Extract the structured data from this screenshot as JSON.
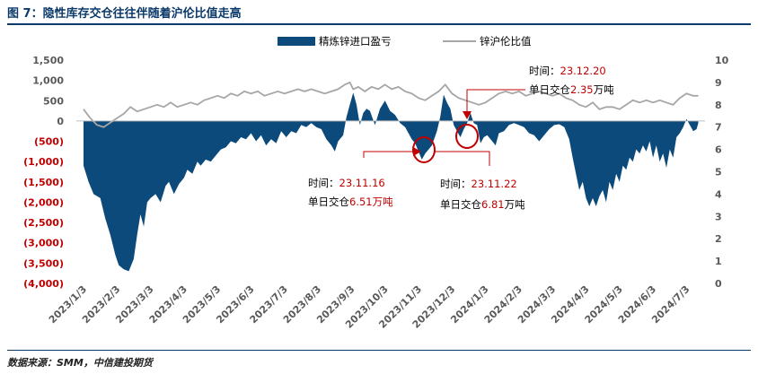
{
  "title": "图 7：隐性库存交仓往往伴随着沪伦比值走高",
  "source": "数据来源：SMM，中信建投期货",
  "colors": {
    "area": "#0b4a7a",
    "line": "#a6a6a6",
    "accent": "#c00000",
    "title": "#0b3a6a"
  },
  "chart_data": {
    "type": "area+line",
    "series": [
      {
        "name": "精炼锌进口盈亏",
        "axis": "left",
        "type": "area"
      },
      {
        "name": "锌沪伦比值",
        "axis": "right",
        "type": "line"
      }
    ],
    "left_axis": {
      "range": [
        -4000,
        1500
      ],
      "ticks": [
        1500,
        1000,
        500,
        0,
        -500,
        -1000,
        -1500,
        -2000,
        -2500,
        -3000,
        -3500,
        -4000
      ],
      "labels": [
        "1,500",
        "1,000",
        "500",
        "0",
        "(500)",
        "(1,000)",
        "(1,500)",
        "(2,000)",
        "(2,500)",
        "(3,000)",
        "(3,500)",
        "(4,000)"
      ]
    },
    "right_axis": {
      "range": [
        0,
        10
      ],
      "ticks": [
        10,
        9,
        8,
        7,
        6,
        5,
        4,
        3,
        2,
        1,
        0
      ],
      "labels": [
        "10",
        "9",
        "8",
        "7",
        "6",
        "5",
        "4",
        "3",
        "2",
        "1",
        "0"
      ]
    },
    "x_labels": [
      "2023/1/3",
      "2023/2/3",
      "2023/3/3",
      "2023/4/3",
      "2023/5/3",
      "2023/6/3",
      "2023/7/3",
      "2023/8/3",
      "2023/9/3",
      "2023/10/3",
      "2023/11/3",
      "2023/12/3",
      "2024/1/3",
      "2024/2/3",
      "2024/3/3",
      "2024/4/3",
      "2024/5/3",
      "2024/6/3",
      "2024/7/3"
    ],
    "area_points": [
      [
        0,
        -1100
      ],
      [
        0.15,
        -1500
      ],
      [
        0.3,
        -1800
      ],
      [
        0.5,
        -1900
      ],
      [
        0.65,
        -2400
      ],
      [
        0.8,
        -2800
      ],
      [
        0.95,
        -3300
      ],
      [
        1.05,
        -3550
      ],
      [
        1.2,
        -3650
      ],
      [
        1.35,
        -3700
      ],
      [
        1.5,
        -3400
      ],
      [
        1.6,
        -2800
      ],
      [
        1.7,
        -2300
      ],
      [
        1.8,
        -2600
      ],
      [
        1.9,
        -2000
      ],
      [
        2.0,
        -1900
      ],
      [
        2.15,
        -1800
      ],
      [
        2.3,
        -2000
      ],
      [
        2.45,
        -1600
      ],
      [
        2.55,
        -1500
      ],
      [
        2.7,
        -1800
      ],
      [
        2.85,
        -1550
      ],
      [
        3.0,
        -1400
      ],
      [
        3.1,
        -1200
      ],
      [
        3.25,
        -1300
      ],
      [
        3.4,
        -1000
      ],
      [
        3.5,
        -1100
      ],
      [
        3.65,
        -950
      ],
      [
        3.8,
        -1000
      ],
      [
        3.95,
        -850
      ],
      [
        4.1,
        -700
      ],
      [
        4.25,
        -650
      ],
      [
        4.4,
        -500
      ],
      [
        4.55,
        -550
      ],
      [
        4.7,
        -400
      ],
      [
        4.85,
        -450
      ],
      [
        5.0,
        -300
      ],
      [
        5.15,
        -500
      ],
      [
        5.3,
        -350
      ],
      [
        5.45,
        -600
      ],
      [
        5.6,
        -450
      ],
      [
        5.75,
        -550
      ],
      [
        5.9,
        -250
      ],
      [
        6.05,
        -400
      ],
      [
        6.2,
        -250
      ],
      [
        6.35,
        -300
      ],
      [
        6.5,
        -100
      ],
      [
        6.65,
        -150
      ],
      [
        6.8,
        -50
      ],
      [
        6.95,
        -150
      ],
      [
        7.1,
        -200
      ],
      [
        7.25,
        -450
      ],
      [
        7.4,
        -600
      ],
      [
        7.5,
        -750
      ],
      [
        7.6,
        -500
      ],
      [
        7.75,
        -350
      ],
      [
        7.85,
        100
      ],
      [
        7.95,
        400
      ],
      [
        8.05,
        700
      ],
      [
        8.15,
        400
      ],
      [
        8.25,
        -100
      ],
      [
        8.35,
        200
      ],
      [
        8.45,
        300
      ],
      [
        8.55,
        250
      ],
      [
        8.7,
        -100
      ],
      [
        8.85,
        300
      ],
      [
        9.0,
        500
      ],
      [
        9.15,
        250
      ],
      [
        9.3,
        150
      ],
      [
        9.45,
        -50
      ],
      [
        9.6,
        -150
      ],
      [
        9.7,
        -300
      ],
      [
        9.8,
        -450
      ],
      [
        9.9,
        -550
      ],
      [
        10.0,
        -750
      ],
      [
        10.1,
        -950
      ],
      [
        10.2,
        -800
      ],
      [
        10.3,
        -700
      ],
      [
        10.4,
        -600
      ],
      [
        10.55,
        -250
      ],
      [
        10.65,
        100
      ],
      [
        10.75,
        650
      ],
      [
        10.85,
        450
      ],
      [
        10.95,
        300
      ],
      [
        11.05,
        -100
      ],
      [
        11.15,
        -250
      ],
      [
        11.25,
        -400
      ],
      [
        11.35,
        -200
      ],
      [
        11.45,
        -50
      ],
      [
        11.55,
        200
      ],
      [
        11.65,
        -50
      ],
      [
        11.75,
        -100
      ],
      [
        11.85,
        -550
      ],
      [
        11.95,
        -400
      ],
      [
        12.05,
        -350
      ],
      [
        12.2,
        -500
      ],
      [
        12.3,
        -600
      ],
      [
        12.4,
        -300
      ],
      [
        12.55,
        -250
      ],
      [
        12.7,
        -100
      ],
      [
        12.85,
        -50
      ],
      [
        13.0,
        -100
      ],
      [
        13.15,
        -150
      ],
      [
        13.3,
        -300
      ],
      [
        13.45,
        -350
      ],
      [
        13.6,
        -500
      ],
      [
        13.75,
        -350
      ],
      [
        13.9,
        -200
      ],
      [
        14.05,
        -100
      ],
      [
        14.2,
        -80
      ],
      [
        14.35,
        -150
      ],
      [
        14.5,
        -450
      ],
      [
        14.6,
        -900
      ],
      [
        14.7,
        -1300
      ],
      [
        14.8,
        -1700
      ],
      [
        14.9,
        -1500
      ],
      [
        15.0,
        -1900
      ],
      [
        15.1,
        -2100
      ],
      [
        15.2,
        -1900
      ],
      [
        15.3,
        -2100
      ],
      [
        15.4,
        -1850
      ],
      [
        15.5,
        -1700
      ],
      [
        15.6,
        -2000
      ],
      [
        15.7,
        -1500
      ],
      [
        15.8,
        -1700
      ],
      [
        15.9,
        -1300
      ],
      [
        16.0,
        -1500
      ],
      [
        16.1,
        -1100
      ],
      [
        16.2,
        -1200
      ],
      [
        16.3,
        -900
      ],
      [
        16.4,
        -1000
      ],
      [
        16.5,
        -700
      ],
      [
        16.6,
        -800
      ],
      [
        16.7,
        -600
      ],
      [
        16.8,
        -750
      ],
      [
        16.9,
        -500
      ],
      [
        17.0,
        -900
      ],
      [
        17.1,
        -600
      ],
      [
        17.2,
        -1000
      ],
      [
        17.3,
        -800
      ],
      [
        17.4,
        -1150
      ],
      [
        17.5,
        -700
      ],
      [
        17.6,
        -900
      ],
      [
        17.7,
        -400
      ],
      [
        17.8,
        -300
      ],
      [
        17.9,
        -150
      ],
      [
        18.0,
        50
      ],
      [
        18.1,
        -100
      ],
      [
        18.2,
        -250
      ],
      [
        18.3,
        -200
      ],
      [
        18.35,
        -50
      ]
    ],
    "line_points": [
      [
        0,
        7.8
      ],
      [
        0.2,
        7.4
      ],
      [
        0.4,
        7.1
      ],
      [
        0.6,
        7.0
      ],
      [
        0.8,
        7.2
      ],
      [
        1.0,
        7.4
      ],
      [
        1.2,
        7.6
      ],
      [
        1.4,
        7.9
      ],
      [
        1.6,
        7.7
      ],
      [
        1.8,
        7.8
      ],
      [
        2.0,
        7.9
      ],
      [
        2.2,
        8.0
      ],
      [
        2.4,
        7.9
      ],
      [
        2.6,
        8.1
      ],
      [
        2.8,
        7.9
      ],
      [
        3.0,
        8.0
      ],
      [
        3.2,
        8.1
      ],
      [
        3.4,
        8.0
      ],
      [
        3.6,
        8.2
      ],
      [
        3.8,
        8.3
      ],
      [
        4.0,
        8.4
      ],
      [
        4.2,
        8.3
      ],
      [
        4.4,
        8.5
      ],
      [
        4.6,
        8.4
      ],
      [
        4.8,
        8.6
      ],
      [
        5.0,
        8.5
      ],
      [
        5.2,
        8.6
      ],
      [
        5.4,
        8.4
      ],
      [
        5.6,
        8.5
      ],
      [
        5.8,
        8.6
      ],
      [
        6.0,
        8.5
      ],
      [
        6.2,
        8.6
      ],
      [
        6.4,
        8.7
      ],
      [
        6.6,
        8.6
      ],
      [
        6.8,
        8.7
      ],
      [
        7.0,
        8.6
      ],
      [
        7.2,
        8.5
      ],
      [
        7.4,
        8.6
      ],
      [
        7.6,
        8.7
      ],
      [
        7.8,
        8.9
      ],
      [
        7.95,
        9.0
      ],
      [
        8.05,
        8.7
      ],
      [
        8.2,
        8.8
      ],
      [
        8.4,
        8.6
      ],
      [
        8.6,
        8.8
      ],
      [
        8.8,
        8.7
      ],
      [
        9.0,
        8.9
      ],
      [
        9.2,
        8.7
      ],
      [
        9.4,
        8.8
      ],
      [
        9.6,
        8.6
      ],
      [
        9.8,
        8.5
      ],
      [
        10.0,
        8.3
      ],
      [
        10.2,
        8.2
      ],
      [
        10.4,
        8.4
      ],
      [
        10.6,
        8.6
      ],
      [
        10.8,
        8.9
      ],
      [
        11.0,
        8.5
      ],
      [
        11.2,
        8.3
      ],
      [
        11.4,
        8.2
      ],
      [
        11.6,
        8.1
      ],
      [
        11.8,
        8.0
      ],
      [
        12.0,
        8.1
      ],
      [
        12.2,
        8.3
      ],
      [
        12.4,
        8.5
      ],
      [
        12.6,
        8.6
      ],
      [
        12.8,
        8.5
      ],
      [
        13.0,
        8.6
      ],
      [
        13.2,
        8.4
      ],
      [
        13.4,
        8.5
      ],
      [
        13.6,
        8.6
      ],
      [
        13.8,
        8.5
      ],
      [
        14.0,
        8.4
      ],
      [
        14.2,
        8.5
      ],
      [
        14.4,
        8.3
      ],
      [
        14.6,
        8.2
      ],
      [
        14.8,
        8.0
      ],
      [
        15.0,
        7.9
      ],
      [
        15.2,
        8.1
      ],
      [
        15.4,
        7.8
      ],
      [
        15.6,
        7.9
      ],
      [
        15.8,
        7.9
      ],
      [
        16.0,
        7.8
      ],
      [
        16.2,
        8.0
      ],
      [
        16.4,
        8.2
      ],
      [
        16.6,
        8.1
      ],
      [
        16.8,
        8.2
      ],
      [
        17.0,
        8.1
      ],
      [
        17.2,
        8.2
      ],
      [
        17.4,
        8.1
      ],
      [
        17.6,
        8.0
      ],
      [
        17.8,
        8.3
      ],
      [
        18.0,
        8.5
      ],
      [
        18.2,
        8.4
      ],
      [
        18.35,
        8.4
      ]
    ],
    "annotations": [
      {
        "time_label": "时间：",
        "time": "23.12.20",
        "vol_label": "单日交仓",
        "vol": "2.35",
        "unit": "万吨",
        "x": 11.65,
        "y": -350
      },
      {
        "time_label": "时间：",
        "time": "23.11.16",
        "vol_label": "单日交仓",
        "vol": "6.51",
        "unit": "万吨",
        "x": 10.1,
        "y": -700
      },
      {
        "time_label": "时间：",
        "time": "23.11.22",
        "vol_label": "单日交仓",
        "vol": "6.81",
        "unit": "万吨",
        "x": 10.1,
        "y": -700
      }
    ]
  }
}
